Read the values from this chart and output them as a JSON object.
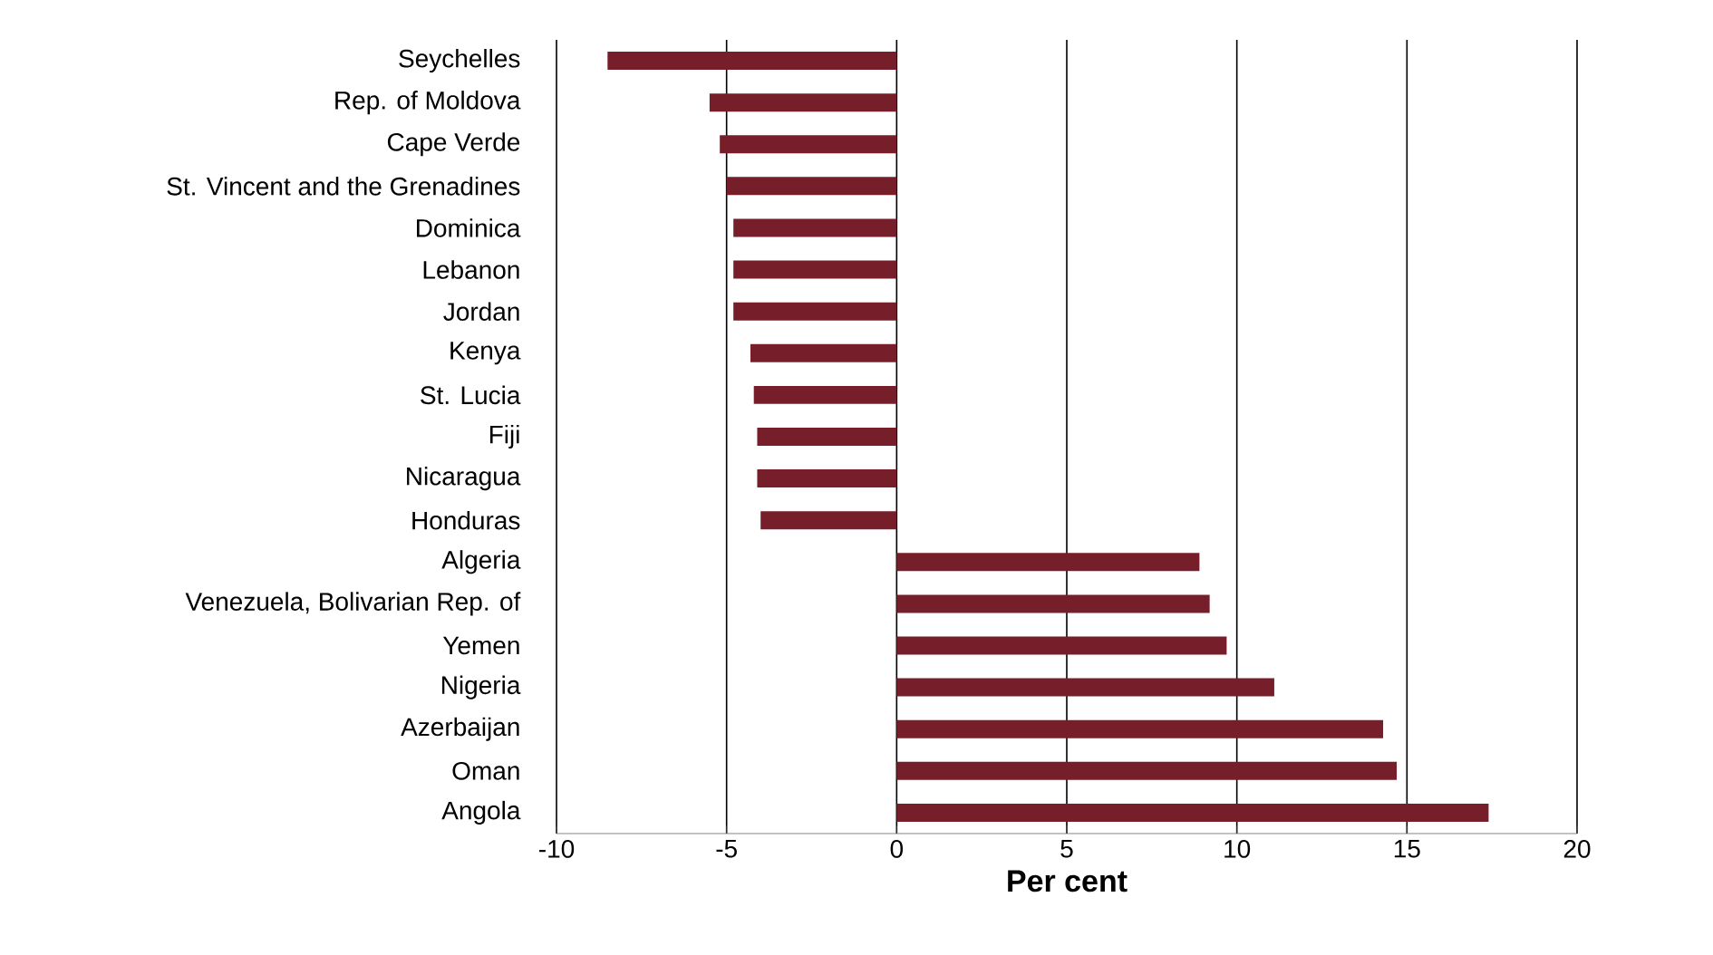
{
  "chart_data": {
    "type": "bar",
    "orientation": "horizontal",
    "xlabel": "Per cent",
    "categories": [
      "Seychelles",
      "Rep. of Moldova",
      "Cape Verde",
      "St. Vincent and the Grenadines",
      "Dominica",
      "Lebanon",
      "Jordan",
      "Kenya",
      "St. Lucia",
      "Fiji",
      "Nicaragua",
      "Honduras",
      "Algeria",
      "Venezuela, Bolivarian Rep. of",
      "Yemen",
      "Nigeria",
      "Azerbaijan",
      "Oman",
      "Angola"
    ],
    "values": [
      -8.5,
      -5.5,
      -5.2,
      -5.0,
      -4.8,
      -4.8,
      -4.8,
      -4.3,
      -4.2,
      -4.1,
      -4.1,
      -4.0,
      8.9,
      9.2,
      9.7,
      11.1,
      14.3,
      14.7,
      17.4
    ],
    "color": "#761e29",
    "xlim": [
      -10,
      20
    ],
    "xticks": [
      -10,
      -5,
      0,
      5,
      10,
      15,
      20
    ],
    "grid": "x"
  }
}
